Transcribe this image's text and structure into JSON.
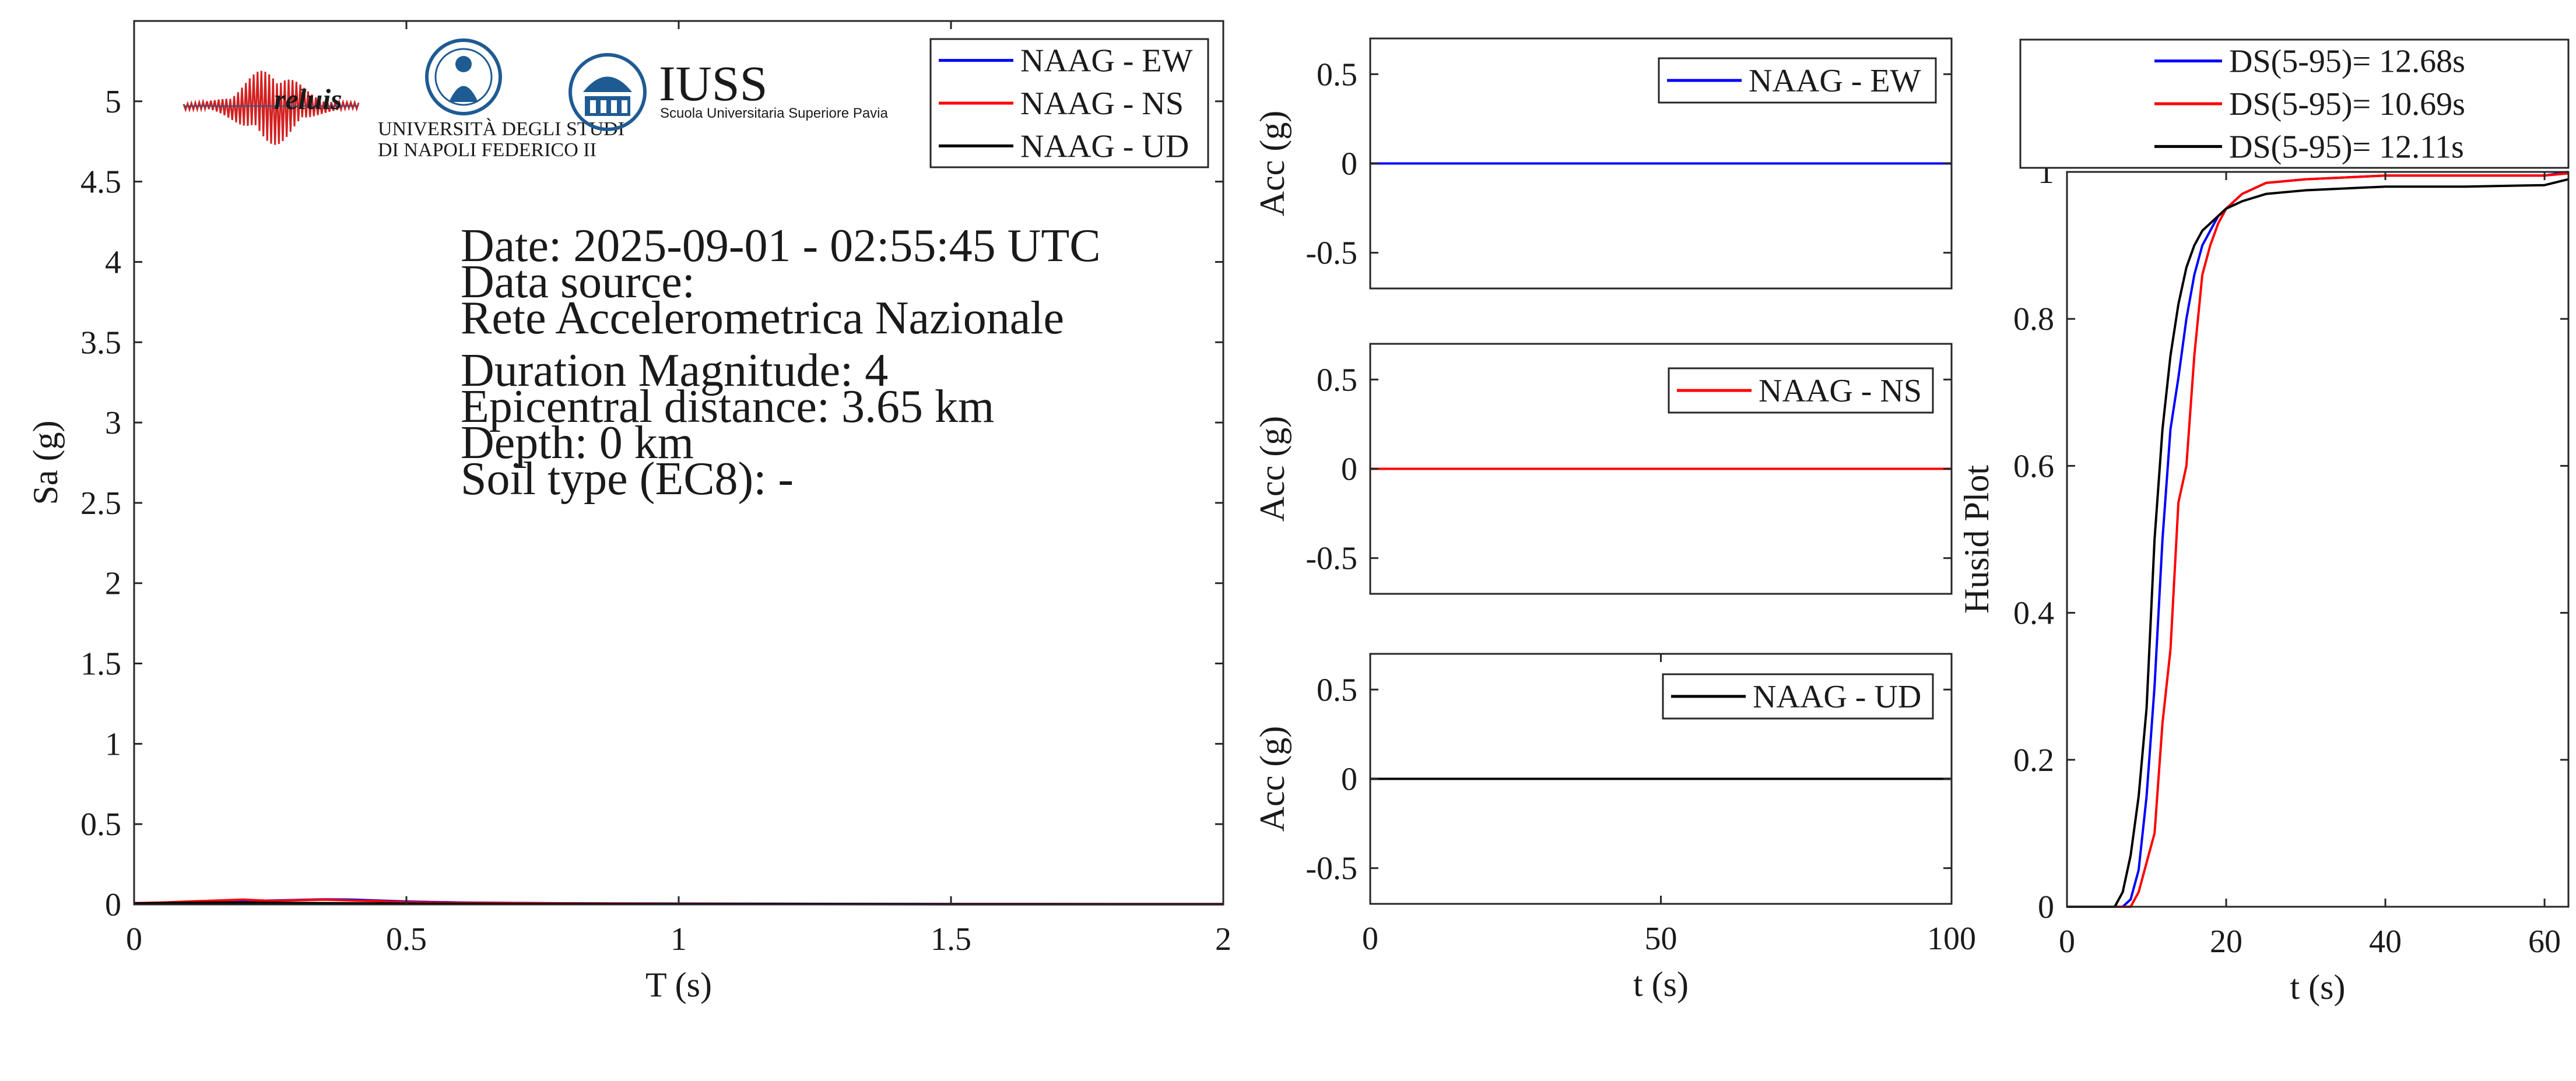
{
  "colors": {
    "ew": "#0000ff",
    "ns": "#ff0000",
    "ud": "#000000",
    "axis": "#262626",
    "logo_blue": "#1f5b93",
    "logo_red": "#d42020"
  },
  "logos": {
    "reluis": "reluis",
    "unina_line1": "UNIVERSITÀ DEGLI STUDI",
    "unina_line2": "DI NAPOLI FEDERICO II",
    "iuss": "IUSS",
    "iuss_sub": "Scuola Universitaria Superiore Pavia"
  },
  "info": {
    "date": "Date: 2025-09-01 - 02:55:45 UTC",
    "source_label": "Data source:",
    "source": "Rete Accelerometrica Nazionale",
    "magnitude": "Duration Magnitude: 4",
    "distance": "Epicentral distance: 3.65 km",
    "depth": "Depth: 0 km",
    "soil": "Soil type (EC8): -"
  },
  "chart_data": [
    {
      "id": "spectrum",
      "type": "line",
      "xlabel": "T (s)",
      "ylabel": "Sa (g)",
      "xlim": [
        0,
        2
      ],
      "ylim": [
        0,
        5.5
      ],
      "xticks": [
        0,
        0.5,
        1,
        1.5,
        2
      ],
      "xtick_labels": [
        "0",
        "0.5",
        "1",
        "1.5",
        "2"
      ],
      "yticks": [
        0,
        0.5,
        1,
        1.5,
        2,
        2.5,
        3,
        3.5,
        4,
        4.5,
        5
      ],
      "ytick_labels": [
        "0",
        "0.5",
        "1",
        "1.5",
        "2",
        "2.5",
        "3",
        "3.5",
        "4",
        "4.5",
        "5"
      ],
      "legend": "top-right",
      "x": [
        0,
        0.05,
        0.1,
        0.15,
        0.2,
        0.25,
        0.3,
        0.35,
        0.4,
        0.45,
        0.5,
        0.6,
        0.7,
        0.8,
        1.0,
        1.2,
        1.5,
        2.0
      ],
      "series": [
        {
          "name": "NAAG - EW",
          "color": "#0000ff",
          "values": [
            0.008,
            0.01,
            0.014,
            0.018,
            0.022,
            0.024,
            0.028,
            0.032,
            0.03,
            0.024,
            0.018,
            0.012,
            0.009,
            0.007,
            0.005,
            0.004,
            0.003,
            0.002
          ]
        },
        {
          "name": "NAAG - NS",
          "color": "#ff0000",
          "values": [
            0.008,
            0.012,
            0.018,
            0.024,
            0.03,
            0.022,
            0.026,
            0.03,
            0.024,
            0.02,
            0.014,
            0.01,
            0.008,
            0.006,
            0.004,
            0.003,
            0.002,
            0.002
          ]
        },
        {
          "name": "NAAG - UD",
          "color": "#000000",
          "values": [
            0.006,
            0.008,
            0.01,
            0.012,
            0.011,
            0.01,
            0.009,
            0.008,
            0.007,
            0.006,
            0.005,
            0.004,
            0.003,
            0.003,
            0.002,
            0.002,
            0.001,
            0.001
          ]
        }
      ]
    },
    {
      "id": "acc-ew",
      "type": "line",
      "xlabel": "",
      "ylabel": "Acc (g)",
      "xlim": [
        0,
        100
      ],
      "ylim": [
        -0.7,
        0.7
      ],
      "yticks": [
        -0.5,
        0,
        0.5
      ],
      "ytick_labels": [
        "-0.5",
        "0",
        "0.5"
      ],
      "legend": "top-right",
      "series": [
        {
          "name": "NAAG - EW",
          "color": "#0000ff",
          "x": [
            0,
            100
          ],
          "values": [
            0,
            0
          ]
        }
      ]
    },
    {
      "id": "acc-ns",
      "type": "line",
      "xlabel": "",
      "ylabel": "Acc (g)",
      "xlim": [
        0,
        100
      ],
      "ylim": [
        -0.7,
        0.7
      ],
      "yticks": [
        -0.5,
        0,
        0.5
      ],
      "ytick_labels": [
        "-0.5",
        "0",
        "0.5"
      ],
      "legend": "top-right",
      "series": [
        {
          "name": "NAAG - NS",
          "color": "#ff0000",
          "x": [
            0,
            100
          ],
          "values": [
            0,
            0
          ]
        }
      ]
    },
    {
      "id": "acc-ud",
      "type": "line",
      "xlabel": "t (s)",
      "ylabel": "Acc (g)",
      "xlim": [
        0,
        100
      ],
      "ylim": [
        -0.7,
        0.7
      ],
      "xticks": [
        0,
        50,
        100
      ],
      "xtick_labels": [
        "0",
        "50",
        "100"
      ],
      "yticks": [
        -0.5,
        0,
        0.5
      ],
      "ytick_labels": [
        "-0.5",
        "0",
        "0.5"
      ],
      "legend": "top-right",
      "series": [
        {
          "name": "NAAG - UD",
          "color": "#000000",
          "x": [
            0,
            100
          ],
          "values": [
            0,
            0
          ]
        }
      ]
    },
    {
      "id": "husid",
      "type": "line",
      "xlabel": "t (s)",
      "ylabel": "Husid Plot",
      "xlim": [
        0,
        63
      ],
      "ylim": [
        0,
        1
      ],
      "xticks": [
        0,
        20,
        40,
        60
      ],
      "xtick_labels": [
        "0",
        "20",
        "40",
        "60"
      ],
      "yticks": [
        0,
        0.2,
        0.4,
        0.6,
        0.8,
        1
      ],
      "ytick_labels": [
        "0",
        "0.2",
        "0.4",
        "0.6",
        "0.8",
        "1"
      ],
      "legend": "top-outside",
      "series": [
        {
          "name": "DS(5-95)= 12.68s",
          "color": "#0000ff",
          "x": [
            0,
            7,
            8,
            9,
            10,
            11,
            12,
            13,
            14,
            15,
            16,
            17,
            18,
            19,
            20,
            22,
            25,
            30,
            40,
            50,
            60,
            63
          ],
          "values": [
            0,
            0,
            0.01,
            0.05,
            0.15,
            0.3,
            0.5,
            0.65,
            0.72,
            0.8,
            0.86,
            0.9,
            0.92,
            0.94,
            0.95,
            0.97,
            0.985,
            0.99,
            0.995,
            0.995,
            0.995,
            1.0
          ]
        },
        {
          "name": "DS(5-95)= 10.69s",
          "color": "#ff0000",
          "x": [
            0,
            8,
            9,
            10,
            11,
            12,
            13,
            14,
            15,
            16,
            17,
            18,
            19,
            20,
            22,
            25,
            30,
            40,
            50,
            60,
            63
          ],
          "values": [
            0,
            0,
            0.02,
            0.06,
            0.1,
            0.25,
            0.35,
            0.55,
            0.6,
            0.75,
            0.86,
            0.9,
            0.93,
            0.95,
            0.97,
            0.985,
            0.99,
            0.995,
            0.995,
            0.995,
            0.998
          ]
        },
        {
          "name": "DS(5-95)= 12.11s",
          "color": "#000000",
          "x": [
            0,
            6,
            7,
            8,
            9,
            10,
            11,
            12,
            13,
            14,
            15,
            16,
            17,
            18,
            20,
            22,
            25,
            30,
            40,
            50,
            60,
            63
          ],
          "values": [
            0,
            0,
            0.02,
            0.07,
            0.15,
            0.27,
            0.5,
            0.65,
            0.75,
            0.82,
            0.87,
            0.9,
            0.92,
            0.93,
            0.95,
            0.96,
            0.97,
            0.975,
            0.98,
            0.98,
            0.982,
            0.99
          ]
        }
      ]
    }
  ]
}
